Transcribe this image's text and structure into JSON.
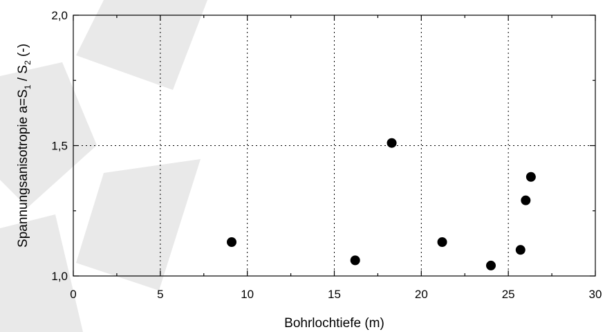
{
  "chart_data": {
    "type": "scatter",
    "xlabel": "Bohrlochtiefe (m)",
    "ylabel": "Spannungsanisotropie a=S1 / S2 (-)",
    "ylabel_parts": {
      "prefix": "Spannungsanisotropie a=S",
      "sub1": "1",
      "middle": " / S",
      "sub2": "2",
      "suffix": " (-)"
    },
    "xlim": [
      0,
      30
    ],
    "ylim": [
      1.0,
      2.0
    ],
    "x_ticks": [
      0,
      5,
      10,
      15,
      20,
      25,
      30
    ],
    "x_tick_labels": [
      "0",
      "5",
      "10",
      "15",
      "20",
      "25",
      "30"
    ],
    "y_ticks": [
      1.0,
      1.5,
      2.0
    ],
    "y_tick_labels": [
      "1,0",
      "1,5",
      "2,0"
    ],
    "grid": {
      "vertical": true,
      "horizontal_at": [
        1.5
      ],
      "style": "dotted"
    },
    "marker": "filled-circle",
    "marker_color": "#000000",
    "series": [
      {
        "x": [
          9.1,
          16.2,
          18.3,
          21.2,
          24.0,
          25.7,
          26.0,
          26.3
        ],
        "y": [
          1.13,
          1.06,
          1.51,
          1.13,
          1.04,
          1.1,
          1.29,
          1.38
        ]
      }
    ]
  }
}
